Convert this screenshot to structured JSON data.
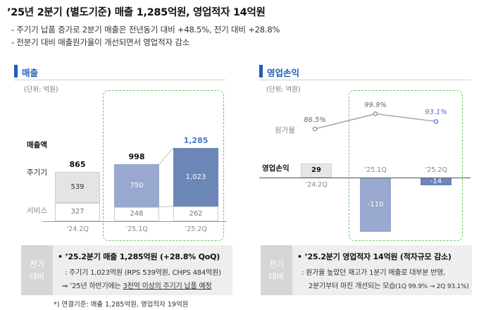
{
  "header": {
    "title": "’25년 2분기 (별도기준) 매출 1,285억원, 영업적자 14억원",
    "bullets": [
      "- 주기기 납품 증가로 2분기 매출은 전년동기 대비 +48.5%, 전기 대비 +28.8%",
      "- 전분기 대비 매출원가율이 개선되면서 영업적자 감소"
    ]
  },
  "revenue_section": {
    "title": "매출",
    "unit": "(단위: 억원)",
    "row_labels": {
      "total": "매출액",
      "main": "주기기",
      "service": "서비스"
    }
  },
  "op_section": {
    "title": "영업손익",
    "unit": "(단위: 억원)",
    "cost_label": "원가율",
    "op_label": "영업손익"
  },
  "chart_data": [
    {
      "type": "bar",
      "title": "매출",
      "categories": [
        "’24.2Q",
        "’25.1Q",
        "’25.2Q"
      ],
      "series": [
        {
          "name": "주기기",
          "values": [
            539,
            750,
            1023
          ]
        },
        {
          "name": "서비스",
          "values": [
            327,
            248,
            262
          ]
        }
      ],
      "totals": [
        865,
        998,
        1285
      ],
      "total_labels": [
        "865",
        "998",
        "1,285"
      ],
      "value_labels": {
        "main": [
          "539",
          "750",
          "1,023"
        ],
        "service": [
          "327",
          "248",
          "262"
        ]
      },
      "colors": {
        "main": [
          "#e4e4e4",
          "#98a8cf",
          "#6c86b7"
        ],
        "service": [
          "#ffffff",
          "#ffffff",
          "#ffffff"
        ],
        "total_highlight": "#4a74c9"
      }
    },
    {
      "type": "line",
      "title": "원가율",
      "categories": [
        "’24.2Q",
        "’25.1Q",
        "’25.2Q"
      ],
      "values": [
        86.5,
        99.9,
        93.1
      ],
      "labels": [
        "86.5%",
        "99.9%",
        "93.1%"
      ],
      "colors": {
        "line": "#a6a6a6",
        "highlight": "#4a74c9"
      }
    },
    {
      "type": "bar",
      "title": "영업손익",
      "categories": [
        "’24.2Q",
        "’25.1Q",
        "’25.2Q"
      ],
      "values": [
        29,
        -110,
        -14
      ],
      "labels": [
        "29",
        "-110",
        "-14"
      ],
      "colors": {
        "bars": [
          "#e6e6e6",
          "#98a8cf",
          "#6c86b7"
        ]
      }
    }
  ],
  "summary_left": {
    "side_label": "전기\n대비",
    "headline": "• ’25.2분기 매출 1,285억원 (+28.8% QoQ)",
    "line1": ": 주기기 1,023억원 (RPS 539억원, CHPS 484억원)",
    "line2_prefix": "⇒ ’25년 하반기에는 ",
    "line2_underlined": "3천억 이상의 주기기 납품 예정"
  },
  "summary_right": {
    "side_label": "전기\n대비",
    "headline": "• ’25.2분기 영업적자 14억원 (적자규모 감소)",
    "line1": ": 원가율 높았던 재고가 1분기 매출로 대부분 반영,",
    "line2": "2분기부터 마진 개선되는 모습",
    "line2_small": "(1Q 99.9% → 2Q 93.1%)"
  },
  "footnote": "*) 연결기준: 매출 1,285억원, 영업적자 19억원"
}
